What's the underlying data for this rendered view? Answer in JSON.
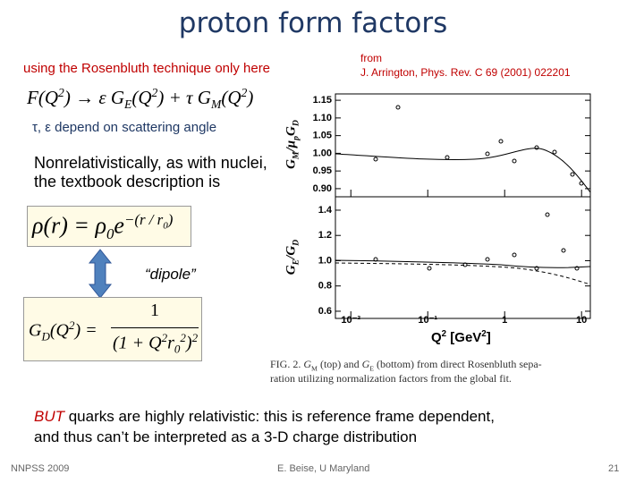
{
  "title": "proton form factors",
  "left": {
    "note": "using the Rosenbluth technique only here",
    "equation_1": [
      "F(Q",
      "2",
      ") → ε G",
      "E",
      "(Q",
      "2",
      ") + τ G",
      "M",
      "(Q",
      "2",
      ")"
    ],
    "angle_note": "τ, ε depend on scattering angle",
    "description": [
      "Nonrelativistically, as with nuclei,",
      "the textbook description is"
    ],
    "equation_2": [
      "ρ(r) = ρ",
      "0",
      "e",
      "−(r / r",
      "0",
      ")"
    ],
    "dipole_label": "“dipole”",
    "equation_3": {
      "lhs": [
        "G",
        "D",
        "(Q",
        "2",
        ") ="
      ],
      "numerator": "1",
      "denominator": [
        "(1 + Q",
        "2",
        "r",
        "0",
        "2",
        ")",
        "2"
      ]
    }
  },
  "source": {
    "from": "from",
    "reference": "J. Arrington, Phys. Rev. C 69 (2001) 022201"
  },
  "figure": {
    "top_ylabel": [
      "G",
      "M",
      "/μ",
      "p",
      "G",
      "D"
    ],
    "bottom_ylabel": [
      "G",
      "E",
      "/G",
      "D"
    ],
    "xlabel": [
      "Q",
      "2",
      " [GeV",
      "2",
      "]"
    ],
    "top_ylim": [
      0.877,
      1.168
    ],
    "top_yticks": [
      {
        "value": 0.9,
        "label": "0.90"
      },
      0.95,
      {
        "value": 1,
        "label": "1.00"
      },
      1.05,
      {
        "value": 1.1,
        "label": "1.10"
      },
      1.15
    ],
    "bottom_ylim": [
      0.543,
      1.506
    ],
    "bottom_yticks": [
      0.6,
      0.8,
      {
        "value": 1,
        "label": "1.0"
      },
      1.2,
      1.4
    ],
    "xlim": [
      0.0063,
      13
    ],
    "log_x": true,
    "xticks": [
      {
        "value": 0.01,
        "label": "10⁻²"
      },
      {
        "value": 0.1,
        "label": "10⁻¹"
      },
      1,
      10
    ],
    "caption": [
      "FIG. 2. ",
      "G",
      "M",
      " (top) and ",
      "G",
      "E",
      " (bottom) from direct Rosenbluth sepa-",
      "ration utilizing normalization factors from the global fit."
    ]
  },
  "bottom_text": {
    "lead": "BUT",
    "rest": " quarks are highly relativistic: this is reference frame dependent,",
    "line_2": "and thus can’t be interpreted as a 3-D charge distribution"
  },
  "footer": {
    "left": "NNPSS 2009",
    "center": "E. Beise, U Maryland",
    "page": "21"
  }
}
